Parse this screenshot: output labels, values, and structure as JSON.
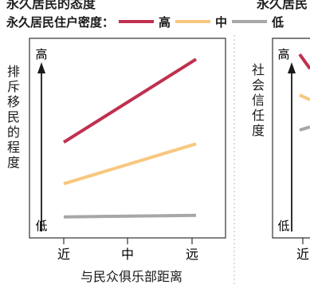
{
  "header_cutoff_left": "永久居民的态度",
  "header_cutoff_right": "永久居民",
  "legend": {
    "title": "永久居民住户密度：",
    "items": [
      {
        "label": "高",
        "color": "#c0304f"
      },
      {
        "label": "中",
        "color": "#f8c77f"
      },
      {
        "label": "低",
        "color": "#a7a7a7"
      }
    ]
  },
  "chart_data": [
    {
      "type": "line",
      "x": [
        "近",
        "中",
        "远"
      ],
      "ylabel": "排斥移民的程度",
      "xlabel": "与民众俱乐部距离",
      "y_axis_top_label": "高",
      "y_axis_bottom_label": "低",
      "ylim": [
        0,
        100
      ],
      "series": [
        {
          "name": "高",
          "color": "#c0304f",
          "values": [
            48,
            73,
            98
          ]
        },
        {
          "name": "中",
          "color": "#f8c77f",
          "values": [
            23,
            35,
            47
          ]
        },
        {
          "name": "低",
          "color": "#a7a7a7",
          "values": [
            3,
            3.5,
            4
          ]
        }
      ]
    },
    {
      "type": "line",
      "ylabel": "社会信任度",
      "y_axis_top_label": "高",
      "y_axis_bottom_label": "低",
      "x": [
        "近"
      ],
      "ylim": [
        0,
        100
      ]
    }
  ]
}
